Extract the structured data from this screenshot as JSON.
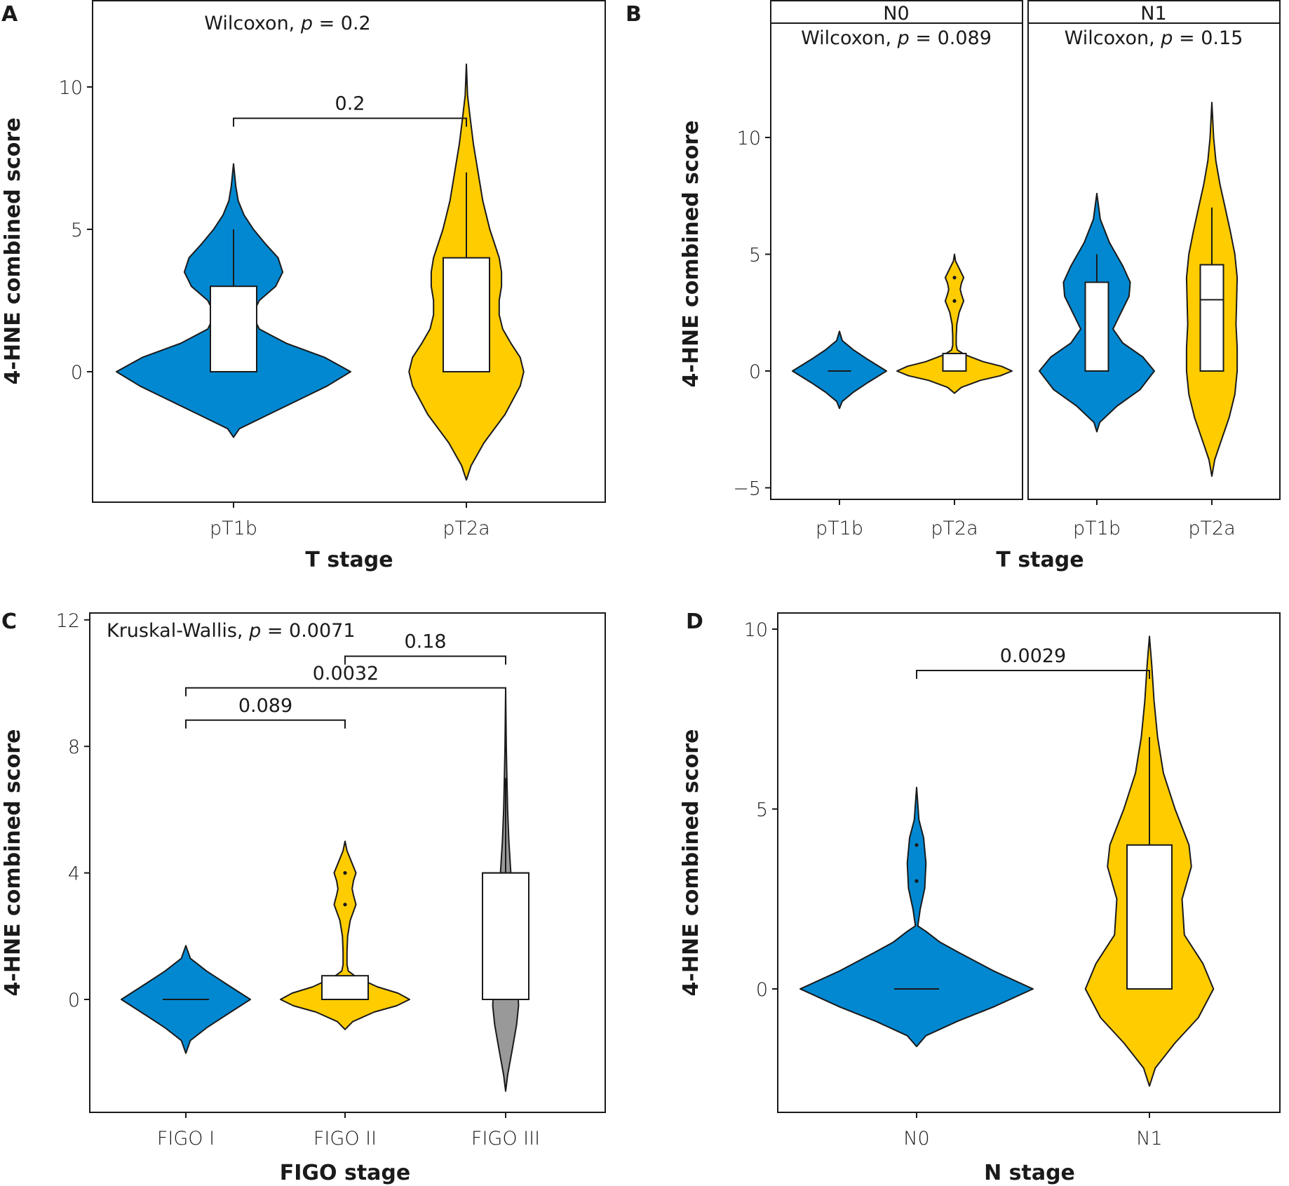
{
  "figure": {
    "colors": {
      "blue": "#0288D1",
      "yellow": "#FFCC00",
      "gray": "#999999",
      "box": "#FFFFFF",
      "line": "#1A1A1A"
    }
  },
  "chart_data": [
    {
      "panel": "A",
      "type": "violin",
      "title": "",
      "annotation": {
        "prefix": "Wilcoxon, ",
        "p_symbol": "p",
        "suffix": " = 0.2"
      },
      "xlabel": "T stage",
      "ylabel": "4-HNE combined score",
      "ylim": [
        -4.4,
        13
      ],
      "yticks": [
        0,
        5,
        10
      ],
      "categories": [
        "pT1b",
        "pT2a"
      ],
      "groups": [
        {
          "name": "pT1b",
          "color": "blue",
          "box": {
            "q1": 0,
            "median": 0,
            "q3": 3,
            "whisker_low": 0,
            "whisker_high": 5
          },
          "outliers": [],
          "violin": [
            [
              -2.3,
              0
            ],
            [
              -2.0,
              0.05
            ],
            [
              -1.5,
              0.3
            ],
            [
              -1,
              0.55
            ],
            [
              -0.5,
              0.8
            ],
            [
              0,
              1
            ],
            [
              0.5,
              0.78
            ],
            [
              1,
              0.45
            ],
            [
              1.5,
              0.22
            ],
            [
              2,
              0.16
            ],
            [
              2.5,
              0.22
            ],
            [
              3,
              0.36
            ],
            [
              3.5,
              0.42
            ],
            [
              4,
              0.38
            ],
            [
              4.5,
              0.27
            ],
            [
              5,
              0.17
            ],
            [
              5.5,
              0.09
            ],
            [
              6,
              0.04
            ],
            [
              6.5,
              0.02
            ],
            [
              7.3,
              0
            ]
          ]
        },
        {
          "name": "pT2a",
          "color": "yellow",
          "box": {
            "q1": 0,
            "median": 0,
            "q3": 4,
            "whisker_low": 0,
            "whisker_high": 7
          },
          "outliers": [],
          "violin": [
            [
              -3.8,
              0
            ],
            [
              -3.3,
              0.04
            ],
            [
              -2.5,
              0.15
            ],
            [
              -1.5,
              0.33
            ],
            [
              -0.5,
              0.46
            ],
            [
              0,
              0.49
            ],
            [
              0.5,
              0.46
            ],
            [
              1,
              0.38
            ],
            [
              1.5,
              0.31
            ],
            [
              2,
              0.28
            ],
            [
              2.5,
              0.28
            ],
            [
              3,
              0.3
            ],
            [
              3.5,
              0.3
            ],
            [
              4,
              0.28
            ],
            [
              5,
              0.2
            ],
            [
              6,
              0.14
            ],
            [
              7,
              0.1
            ],
            [
              8,
              0.06
            ],
            [
              9,
              0.03
            ],
            [
              9.7,
              0.01
            ],
            [
              10.8,
              0
            ]
          ]
        }
      ],
      "comparisons": [
        {
          "from": "pT1b",
          "to": "pT2a",
          "label": "0.2",
          "y": 8.9
        }
      ]
    },
    {
      "panel": "B",
      "type": "violin",
      "facets": [
        {
          "strip": "N0",
          "annotation": {
            "prefix": "Wilcoxon, ",
            "p_symbol": "p",
            "suffix": " = 0.089"
          },
          "categories": [
            "pT1b",
            "pT2a"
          ],
          "groups": [
            {
              "name": "pT1b",
              "color": "blue",
              "box": {
                "q1": 0,
                "median": 0,
                "q3": 0,
                "whisker_low": 0,
                "whisker_high": 0
              },
              "outliers": [],
              "violin": [
                [
                  -1.6,
                  0
                ],
                [
                  -1.3,
                  0.06
                ],
                [
                  -0.9,
                  0.3
                ],
                [
                  -0.5,
                  0.6
                ],
                [
                  0,
                  1
                ],
                [
                  0.5,
                  0.6
                ],
                [
                  0.9,
                  0.3
                ],
                [
                  1.3,
                  0.06
                ],
                [
                  1.7,
                  0
                ]
              ]
            },
            {
              "name": "pT2a",
              "color": "yellow",
              "box": {
                "q1": 0,
                "median": 0,
                "q3": 0.75,
                "whisker_low": 0,
                "whisker_high": 0.75
              },
              "outliers": [
                3,
                4
              ],
              "violin": [
                [
                  -0.95,
                  0
                ],
                [
                  -0.7,
                  0.12
                ],
                [
                  -0.4,
                  0.45
                ],
                [
                  -0.2,
                  0.8
                ],
                [
                  0,
                  1
                ],
                [
                  0.2,
                  0.82
                ],
                [
                  0.4,
                  0.5
                ],
                [
                  0.7,
                  0.18
                ],
                [
                  0.9,
                  0.05
                ],
                [
                  1.1,
                  0.03
                ],
                [
                  1.5,
                  0.03
                ],
                [
                  2,
                  0.04
                ],
                [
                  2.5,
                  0.08
                ],
                [
                  3,
                  0.16
                ],
                [
                  3.3,
                  0.12
                ],
                [
                  3.5,
                  0.1
                ],
                [
                  3.75,
                  0.12
                ],
                [
                  4,
                  0.16
                ],
                [
                  4.4,
                  0.08
                ],
                [
                  4.7,
                  0.02
                ],
                [
                  5,
                  0
                ]
              ]
            }
          ]
        },
        {
          "strip": "N1",
          "annotation": {
            "prefix": "Wilcoxon, ",
            "p_symbol": "p",
            "suffix": " = 0.15"
          },
          "categories": [
            "pT1b",
            "pT2a"
          ],
          "groups": [
            {
              "name": "pT1b",
              "color": "blue",
              "box": {
                "q1": 0,
                "median": 0,
                "q3": 3.8,
                "whisker_low": 0,
                "whisker_high": 5
              },
              "outliers": [],
              "violin": [
                [
                  -2.6,
                  0
                ],
                [
                  -2.2,
                  0.05
                ],
                [
                  -1.5,
                  0.35
                ],
                [
                  -0.8,
                  0.75
                ],
                [
                  0,
                  1
                ],
                [
                  0.6,
                  0.8
                ],
                [
                  1.2,
                  0.45
                ],
                [
                  1.8,
                  0.28
                ],
                [
                  2.5,
                  0.42
                ],
                [
                  3.2,
                  0.56
                ],
                [
                  3.8,
                  0.58
                ],
                [
                  4.5,
                  0.45
                ],
                [
                  5.5,
                  0.22
                ],
                [
                  6.5,
                  0.06
                ],
                [
                  7.6,
                  0
                ]
              ]
            },
            {
              "name": "pT2a",
              "color": "yellow",
              "box": {
                "q1": 0,
                "median": 3.05,
                "q3": 4.55,
                "whisker_low": 0,
                "whisker_high": 7
              },
              "outliers": [],
              "violin": [
                [
                  -4.5,
                  0
                ],
                [
                  -3.8,
                  0.05
                ],
                [
                  -3,
                  0.16
                ],
                [
                  -2,
                  0.3
                ],
                [
                  -1,
                  0.4
                ],
                [
                  0,
                  0.44
                ],
                [
                  1,
                  0.44
                ],
                [
                  2,
                  0.42
                ],
                [
                  3,
                  0.43
                ],
                [
                  4,
                  0.44
                ],
                [
                  5,
                  0.4
                ],
                [
                  6,
                  0.32
                ],
                [
                  7,
                  0.23
                ],
                [
                  8,
                  0.14
                ],
                [
                  9,
                  0.07
                ],
                [
                  10,
                  0.03
                ],
                [
                  11.5,
                  0
                ]
              ]
            }
          ]
        }
      ],
      "xlabel": "T stage",
      "ylabel": "4-HNE combined score",
      "ylim": [
        -5.5,
        15.5
      ],
      "yticks": [
        -5,
        0,
        5,
        10
      ]
    },
    {
      "panel": "C",
      "type": "violin",
      "annotation": {
        "prefix": "Kruskal-Wallis, ",
        "p_symbol": "p",
        "suffix": " = 0.0071"
      },
      "xlabel": "FIGO stage",
      "ylabel": "4-HNE combined score",
      "ylim": [
        -3.55,
        12.25
      ],
      "yticks": [
        0,
        4,
        8,
        12
      ],
      "categories": [
        "FIGO I",
        "FIGO II",
        "FIGO III"
      ],
      "groups": [
        {
          "name": "FIGO I",
          "color": "blue",
          "box": {
            "q1": 0,
            "median": 0,
            "q3": 0,
            "whisker_low": 0,
            "whisker_high": 0
          },
          "outliers": [],
          "violin": [
            [
              -1.7,
              0
            ],
            [
              -1.3,
              0.07
            ],
            [
              -0.9,
              0.32
            ],
            [
              -0.5,
              0.62
            ],
            [
              0,
              1
            ],
            [
              0.5,
              0.62
            ],
            [
              0.9,
              0.32
            ],
            [
              1.3,
              0.07
            ],
            [
              1.7,
              0
            ]
          ]
        },
        {
          "name": "FIGO II",
          "color": "yellow",
          "box": {
            "q1": 0,
            "median": 0,
            "q3": 0.75,
            "whisker_low": 0,
            "whisker_high": 0.75
          },
          "outliers": [
            3,
            4
          ],
          "violin": [
            [
              -0.95,
              0
            ],
            [
              -0.7,
              0.12
            ],
            [
              -0.4,
              0.45
            ],
            [
              -0.2,
              0.8
            ],
            [
              0,
              1
            ],
            [
              0.2,
              0.82
            ],
            [
              0.4,
              0.5
            ],
            [
              0.7,
              0.18
            ],
            [
              0.9,
              0.05
            ],
            [
              1.1,
              0.03
            ],
            [
              1.5,
              0.03
            ],
            [
              2,
              0.04
            ],
            [
              2.5,
              0.08
            ],
            [
              3,
              0.17
            ],
            [
              3.3,
              0.13
            ],
            [
              3.5,
              0.11
            ],
            [
              3.75,
              0.13
            ],
            [
              4,
              0.17
            ],
            [
              4.4,
              0.09
            ],
            [
              4.7,
              0.03
            ],
            [
              5,
              0
            ]
          ]
        },
        {
          "name": "FIGO III",
          "color": "gray",
          "box": {
            "q1": 0,
            "median": 4,
            "q3": 4,
            "whisker_low": 0,
            "whisker_high": 7
          },
          "outliers": [],
          "violin": [
            [
              -2.9,
              0
            ],
            [
              -2.4,
              0.03
            ],
            [
              -1.5,
              0.11
            ],
            [
              -0.8,
              0.17
            ],
            [
              -0.2,
              0.2
            ],
            [
              0.3,
              0.19
            ],
            [
              1,
              0.13
            ],
            [
              2,
              0.1
            ],
            [
              3,
              0.09
            ],
            [
              4,
              0.08
            ],
            [
              5,
              0.05
            ],
            [
              6,
              0.03
            ],
            [
              7,
              0.02
            ],
            [
              8,
              0.01
            ],
            [
              9.8,
              0
            ]
          ]
        }
      ],
      "comparisons": [
        {
          "from": "FIGO I",
          "to": "FIGO II",
          "label": "0.089",
          "y": 8.83
        },
        {
          "from": "FIGO I",
          "to": "FIGO III",
          "label": "0.0032",
          "y": 9.85
        },
        {
          "from": "FIGO II",
          "to": "FIGO III",
          "label": "0.18",
          "y": 10.85
        }
      ]
    },
    {
      "panel": "D",
      "type": "violin",
      "annotation": null,
      "xlabel": "N stage",
      "ylabel": "4-HNE combined score",
      "ylim": [
        -3.4,
        10.45
      ],
      "yticks": [
        0,
        5,
        10
      ],
      "categories": [
        "N0",
        "N1"
      ],
      "groups": [
        {
          "name": "N0",
          "color": "blue",
          "box": {
            "q1": 0,
            "median": 0,
            "q3": 0,
            "whisker_low": 0,
            "whisker_high": 0
          },
          "outliers": [
            3,
            4
          ],
          "violin": [
            [
              -1.6,
              0
            ],
            [
              -1.3,
              0.08
            ],
            [
              -0.9,
              0.35
            ],
            [
              -0.5,
              0.66
            ],
            [
              0,
              1
            ],
            [
              0.5,
              0.66
            ],
            [
              1,
              0.37
            ],
            [
              1.3,
              0.2
            ],
            [
              1.6,
              0.08
            ],
            [
              1.75,
              0.01
            ],
            [
              2.2,
              0.03
            ],
            [
              2.8,
              0.07
            ],
            [
              3.5,
              0.08
            ],
            [
              4.2,
              0.06
            ],
            [
              4.7,
              0.02
            ],
            [
              5.6,
              0
            ]
          ]
        },
        {
          "name": "N1",
          "color": "yellow",
          "box": {
            "q1": 0,
            "median": 0,
            "q3": 4,
            "whisker_low": 0,
            "whisker_high": 7
          },
          "outliers": [],
          "violin": [
            [
              -2.7,
              0
            ],
            [
              -2.2,
              0.05
            ],
            [
              -1.5,
              0.22
            ],
            [
              -0.8,
              0.42
            ],
            [
              0,
              0.55
            ],
            [
              0.7,
              0.46
            ],
            [
              1.5,
              0.3
            ],
            [
              2.5,
              0.28
            ],
            [
              3.4,
              0.36
            ],
            [
              4,
              0.34
            ],
            [
              5,
              0.22
            ],
            [
              6,
              0.12
            ],
            [
              7,
              0.07
            ],
            [
              8,
              0.04
            ],
            [
              9,
              0.02
            ],
            [
              9.8,
              0
            ]
          ]
        }
      ],
      "comparisons": [
        {
          "from": "N0",
          "to": "N1",
          "label": "0.0029",
          "y": 8.85
        }
      ]
    }
  ],
  "panel_labels": [
    "A",
    "B",
    "C",
    "D"
  ]
}
